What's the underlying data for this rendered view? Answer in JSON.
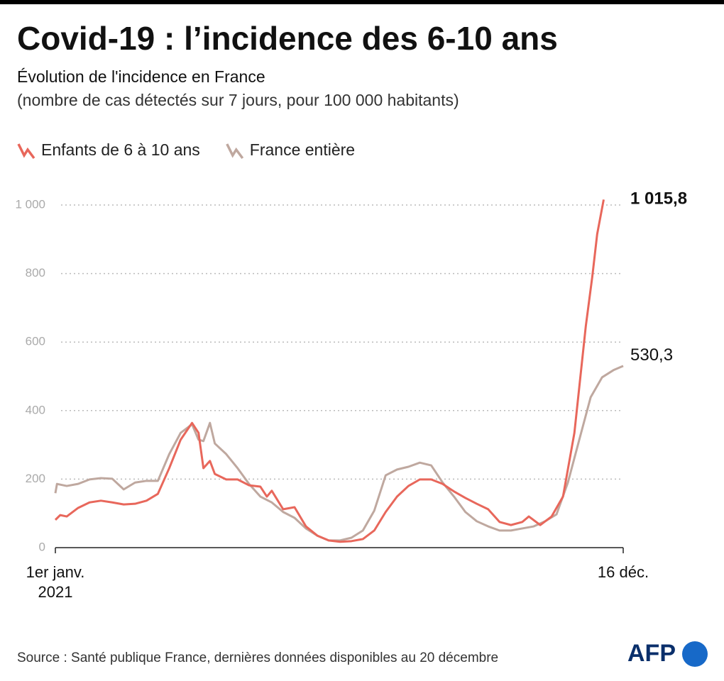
{
  "chart_data": {
    "type": "line",
    "title": "Covid-19 : l’incidence des 6-10 ans",
    "subtitle": "Évolution de l'incidence en France",
    "subtitle2": "(nombre de cas détectés sur 7 jours, pour 100 000 habitants)",
    "source": "Source : Santé publique France, dernières données disponibles au 20 décembre",
    "logo": "AFP",
    "xlim": [
      0,
      349
    ],
    "xticks": [
      {
        "value": 0,
        "label": "1er janv. 2021"
      },
      {
        "value": 349,
        "label": "16 déc."
      }
    ],
    "ylim": [
      0,
      1000
    ],
    "yticks": [
      0,
      200,
      400,
      600,
      800,
      {
        "value": 1000,
        "label": "1 000"
      }
    ],
    "grid": true,
    "legend": "top-left",
    "series": [
      {
        "name": "Enfants de 6 à 10 ans",
        "color": "#e8675b",
        "end_label": "1 015,8",
        "x": [
          0,
          3,
          7,
          14,
          21,
          28,
          35,
          42,
          49,
          56,
          63,
          70,
          77,
          84,
          88,
          91,
          95,
          98,
          105,
          112,
          119,
          126,
          130,
          133,
          140,
          147,
          154,
          161,
          168,
          175,
          182,
          189,
          196,
          203,
          210,
          217,
          224,
          231,
          238,
          245,
          252,
          259,
          266,
          273,
          280,
          287,
          291,
          298,
          305,
          312,
          319,
          326,
          330,
          333,
          337
        ],
        "values": [
          81,
          95,
          91,
          116,
          132,
          137,
          132,
          126,
          128,
          137,
          157,
          232,
          315,
          364,
          335,
          232,
          253,
          215,
          199,
          199,
          182,
          178,
          149,
          166,
          112,
          118,
          62,
          35,
          21,
          17,
          19,
          25,
          50,
          104,
          149,
          180,
          199,
          199,
          186,
          164,
          145,
          128,
          112,
          75,
          66,
          75,
          91,
          66,
          91,
          149,
          335,
          646,
          791,
          915,
          1015.8
        ]
      },
      {
        "name": "France entière",
        "color": "#bfa89f",
        "end_label": "530,3",
        "x": [
          0,
          1,
          7,
          14,
          21,
          28,
          35,
          42,
          49,
          56,
          63,
          70,
          77,
          84,
          88,
          91,
          95,
          98,
          105,
          112,
          119,
          126,
          133,
          140,
          147,
          154,
          161,
          168,
          175,
          182,
          189,
          196,
          203,
          210,
          217,
          224,
          231,
          238,
          245,
          252,
          259,
          266,
          273,
          280,
          287,
          294,
          301,
          308,
          315,
          322,
          329,
          336,
          343,
          349
        ],
        "values": [
          159,
          186,
          180,
          186,
          199,
          203,
          201,
          170,
          190,
          195,
          195,
          273,
          335,
          360,
          315,
          311,
          364,
          304,
          273,
          232,
          186,
          149,
          132,
          104,
          87,
          56,
          35,
          21,
          21,
          29,
          50,
          108,
          211,
          228,
          236,
          248,
          240,
          190,
          149,
          104,
          77,
          62,
          50,
          50,
          56,
          62,
          77,
          97,
          190,
          315,
          439,
          497,
          518,
          530.3
        ]
      }
    ]
  }
}
